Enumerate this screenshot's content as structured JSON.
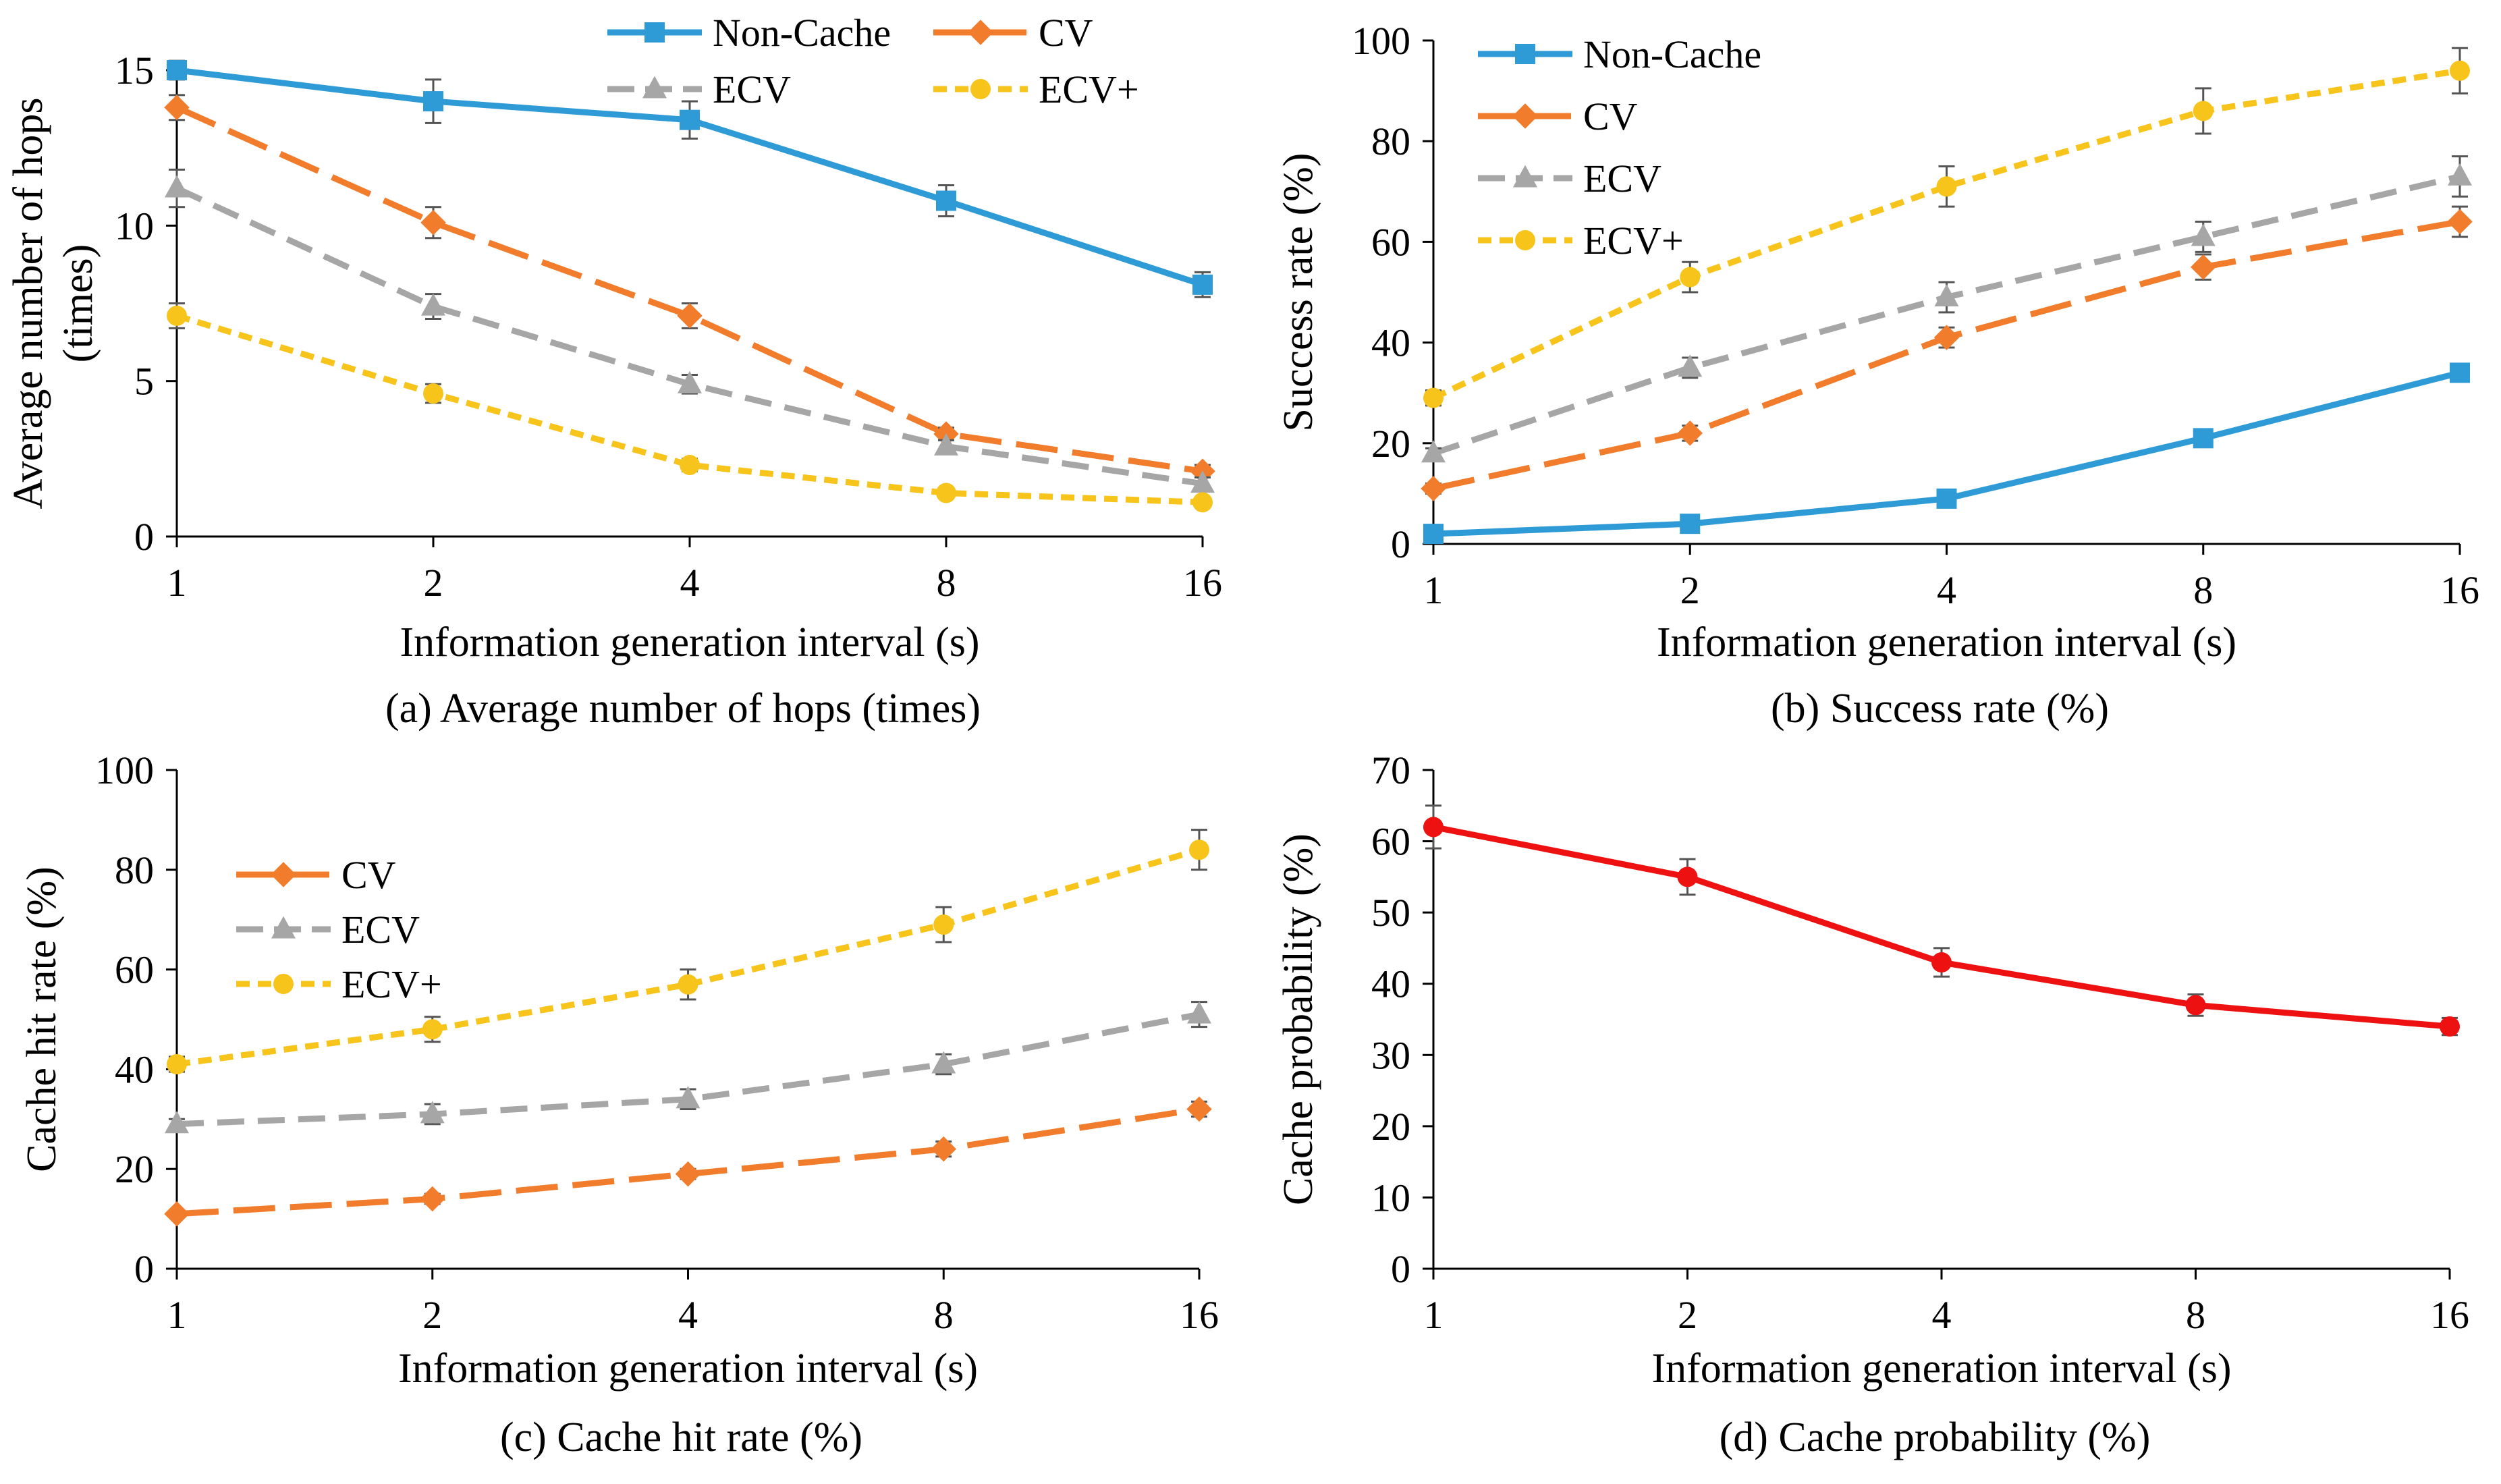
{
  "colors": {
    "non_cache": "#2e9bd6",
    "cv": "#f07c2c",
    "ecv": "#a6a6a6",
    "ecv_plus": "#f7c41c",
    "cache_prob": "#ee1111",
    "axis": "#000000",
    "errorbar": "#555555"
  },
  "chart_data": [
    {
      "id": "a",
      "type": "line",
      "caption": "(a) Average number of hops (times)",
      "xlabel": "Information generation interval (s)",
      "ylabel_lines": [
        "Average number of hops",
        "(times)"
      ],
      "categories": [
        "1",
        "2",
        "4",
        "8",
        "16"
      ],
      "ylim": [
        0,
        15
      ],
      "yticks": [
        0,
        5,
        10,
        15
      ],
      "legend_placement": "top (two columns)",
      "series": [
        {
          "key": "non_cache",
          "name": "Non-Cache",
          "marker": "square",
          "dash": "solid",
          "values": [
            15.0,
            14.0,
            13.4,
            10.8,
            8.1
          ],
          "errors": [
            0.3,
            0.7,
            0.6,
            0.5,
            0.4
          ]
        },
        {
          "key": "cv",
          "name": "CV",
          "marker": "diamond",
          "dash": "long",
          "values": [
            13.8,
            10.1,
            7.1,
            3.3,
            2.1
          ],
          "errors": [
            0.4,
            0.5,
            0.4,
            0.2,
            0.2
          ]
        },
        {
          "key": "ecv",
          "name": "ECV",
          "marker": "triangle",
          "dash": "medium",
          "values": [
            11.2,
            7.4,
            4.9,
            2.9,
            1.7
          ],
          "errors": [
            0.6,
            0.4,
            0.3,
            0.2,
            0.2
          ]
        },
        {
          "key": "ecv_plus",
          "name": "ECV+",
          "marker": "circle",
          "dash": "short",
          "values": [
            7.1,
            4.6,
            2.3,
            1.4,
            1.1
          ],
          "errors": [
            0.4,
            0.3,
            0.2,
            0.1,
            0.1
          ]
        }
      ]
    },
    {
      "id": "b",
      "type": "line",
      "caption": "(b) Success rate (%)",
      "xlabel": "Information generation interval (s)",
      "ylabel_lines": [
        "Success rate (%)"
      ],
      "categories": [
        "1",
        "2",
        "4",
        "8",
        "16"
      ],
      "ylim": [
        0,
        100
      ],
      "yticks": [
        0,
        20,
        40,
        60,
        80,
        100
      ],
      "legend_placement": "top-left",
      "series": [
        {
          "key": "non_cache",
          "name": "Non-Cache",
          "marker": "square",
          "dash": "solid",
          "values": [
            2,
            4,
            9,
            21,
            34
          ],
          "errors": [
            0.5,
            0.8,
            1,
            1,
            1.2
          ]
        },
        {
          "key": "cv",
          "name": "CV",
          "marker": "diamond",
          "dash": "long",
          "values": [
            11,
            22,
            41,
            55,
            64
          ],
          "errors": [
            1,
            1.5,
            2,
            2.5,
            3
          ]
        },
        {
          "key": "ecv",
          "name": "ECV",
          "marker": "triangle",
          "dash": "medium",
          "values": [
            18,
            35,
            49,
            61,
            73
          ],
          "errors": [
            1,
            2,
            3,
            3,
            4
          ]
        },
        {
          "key": "ecv_plus",
          "name": "ECV+",
          "marker": "circle",
          "dash": "short",
          "values": [
            29,
            53,
            71,
            86,
            94
          ],
          "errors": [
            1.5,
            3,
            4,
            4.5,
            4.5
          ]
        }
      ]
    },
    {
      "id": "c",
      "type": "line",
      "caption": "(c) Cache hit rate (%)",
      "xlabel": "Information generation interval (s)",
      "ylabel_lines": [
        "Cache hit rate (%)"
      ],
      "categories": [
        "1",
        "2",
        "4",
        "8",
        "16"
      ],
      "ylim": [
        0,
        100
      ],
      "yticks": [
        0,
        20,
        40,
        60,
        80,
        100
      ],
      "legend_placement": "top-left",
      "series": [
        {
          "key": "cv",
          "name": "CV",
          "marker": "diamond",
          "dash": "long",
          "values": [
            11,
            14,
            19,
            24,
            32
          ],
          "errors": [
            0.5,
            1,
            1,
            1.5,
            1.5
          ]
        },
        {
          "key": "ecv",
          "name": "ECV",
          "marker": "triangle",
          "dash": "medium",
          "values": [
            29,
            31,
            34,
            41,
            51
          ],
          "errors": [
            1,
            2,
            2,
            2,
            2.5
          ]
        },
        {
          "key": "ecv_plus",
          "name": "ECV+",
          "marker": "circle",
          "dash": "short",
          "values": [
            41,
            48,
            57,
            69,
            84
          ],
          "errors": [
            1.5,
            2.5,
            3,
            3.5,
            4
          ]
        }
      ]
    },
    {
      "id": "d",
      "type": "line",
      "caption": "(d) Cache probability (%)",
      "xlabel": "Information generation interval (s)",
      "ylabel_lines": [
        "Cache probability (%)"
      ],
      "categories": [
        "1",
        "2",
        "4",
        "8",
        "16"
      ],
      "ylim": [
        0,
        70
      ],
      "yticks": [
        0,
        10,
        20,
        30,
        40,
        50,
        60,
        70
      ],
      "legend_placement": "none",
      "series": [
        {
          "key": "cache_prob",
          "name": "Cache probability",
          "marker": "circle",
          "dash": "solid",
          "values": [
            62,
            55,
            43,
            37,
            34
          ],
          "errors": [
            3,
            2.5,
            2,
            1.5,
            1.2
          ]
        }
      ]
    }
  ]
}
